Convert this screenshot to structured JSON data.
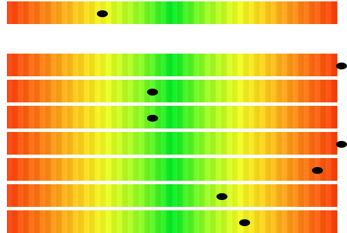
{
  "title": "",
  "indicators": [
    {
      "id": "bar-0",
      "value": 0.29
    },
    {
      "id": "bar-1",
      "value": 1.0
    },
    {
      "id": "bar-2",
      "value": 0.44
    },
    {
      "id": "bar-3",
      "value": 0.44
    },
    {
      "id": "bar-4",
      "value": 1.0
    },
    {
      "id": "bar-5",
      "value": 0.94
    },
    {
      "id": "bar-6",
      "value": 0.65
    },
    {
      "id": "bar-7",
      "value": 0.72
    }
  ],
  "colors": {
    "low": "#ff3d0a",
    "mid": "#f1ff22",
    "high": "#00ee22",
    "marker": "#000000"
  }
}
